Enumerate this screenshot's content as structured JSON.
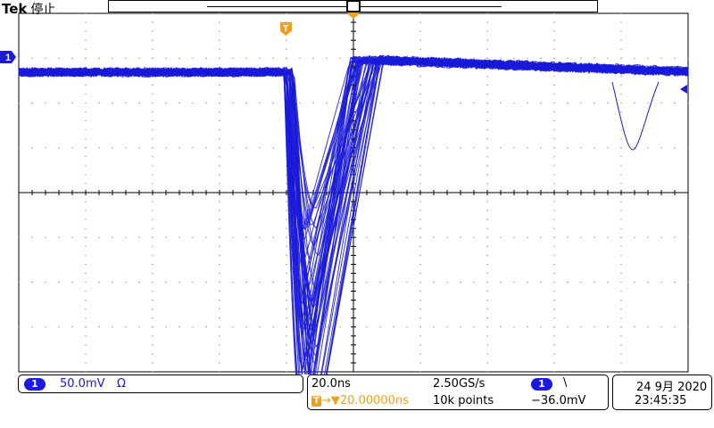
{
  "header": {
    "brand": "Tek",
    "status": "停止"
  },
  "markers": {
    "trigger_position_label": "T",
    "channel_marker_label": "1"
  },
  "channel_readout": {
    "channel": "1",
    "scale": "50.0mV",
    "coupling_symbol": "Ω"
  },
  "timebase_readout": {
    "time_per_div": "20.0ns",
    "sample_rate": "2.50GS/s",
    "trigger_channel": "1",
    "trigger_slope_symbol": "\\",
    "trigger_marker": "T",
    "trigger_offset": "→▼20.00000ns",
    "record_length": "10k points",
    "trigger_level": "−36.0mV"
  },
  "datetime": {
    "date": "24 9月 2020",
    "time": "23:45:35"
  },
  "colors": {
    "trace": "#1a1ad8",
    "trigger_marker": "#f0a020",
    "grid": "#000000"
  }
}
